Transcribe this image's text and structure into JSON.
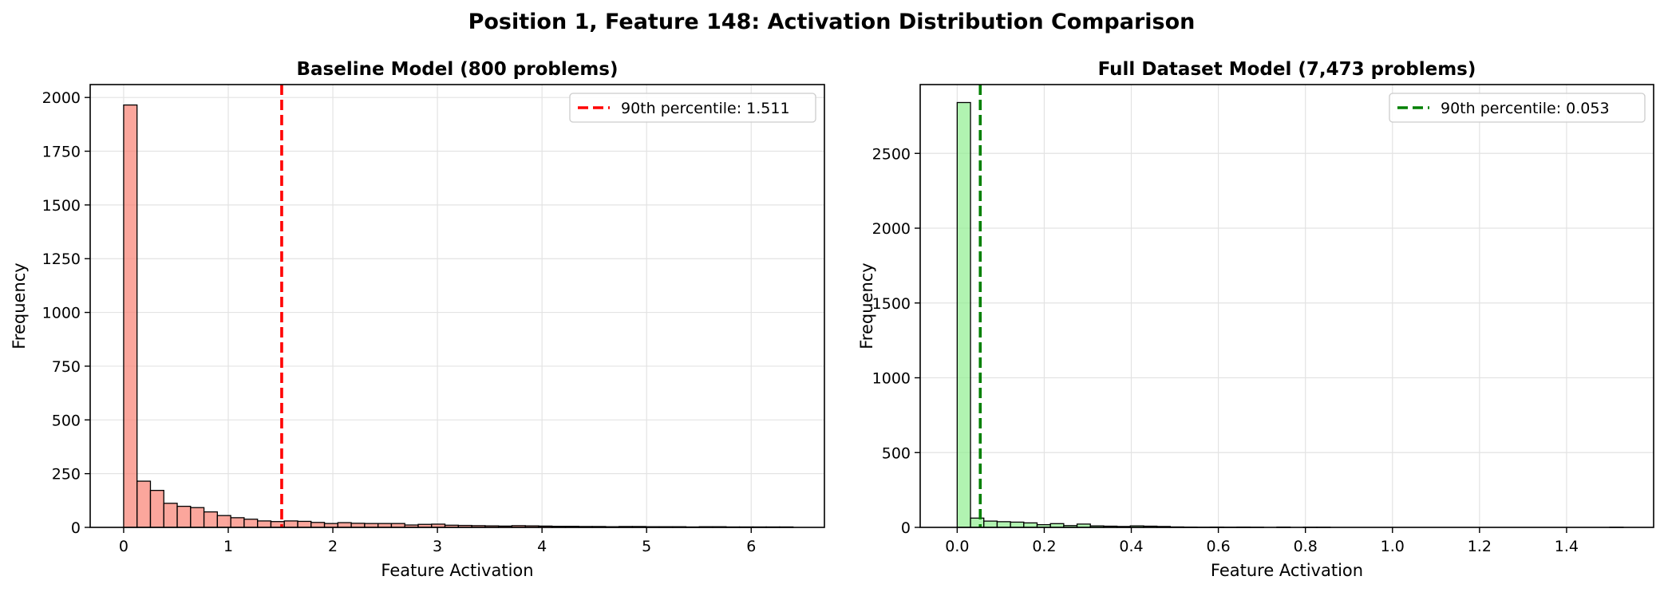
{
  "figure_title": "Position 1, Feature 148: Activation Distribution Comparison",
  "chart_data": [
    {
      "type": "bar",
      "subtype": "histogram",
      "title": "Baseline Model (800 problems)",
      "xlabel": "Feature Activation",
      "ylabel": "Frequency",
      "xlim": [
        -0.32,
        6.7
      ],
      "ylim": [
        0,
        2060
      ],
      "xticks": [
        0,
        1,
        2,
        3,
        4,
        5,
        6
      ],
      "yticks": [
        0,
        250,
        500,
        750,
        1000,
        1250,
        1500,
        1750,
        2000
      ],
      "grid": true,
      "legend_position": "top-right",
      "bar_color": "#FA8072",
      "edge_color": "#000000",
      "bin_start": 0.0,
      "bin_width": 0.128,
      "values": [
        1965,
        215,
        172,
        112,
        98,
        92,
        72,
        55,
        45,
        38,
        30,
        27,
        30,
        28,
        23,
        18,
        22,
        19,
        18,
        18,
        18,
        11,
        14,
        15,
        10,
        9,
        8,
        7,
        6,
        8,
        7,
        6,
        5,
        5,
        4,
        4,
        3,
        4,
        4,
        3,
        3,
        3,
        2,
        3,
        3,
        2,
        2,
        2,
        2,
        2
      ],
      "percentile_line": {
        "value": 1.511,
        "label": "90th percentile: 1.511",
        "color": "#FF0000"
      }
    },
    {
      "type": "bar",
      "subtype": "histogram",
      "title": "Full Dataset Model (7,473 problems)",
      "xlabel": "Feature Activation",
      "ylabel": "Frequency",
      "xlim": [
        -0.085,
        1.6
      ],
      "ylim": [
        0,
        2960
      ],
      "xticks": [
        0.0,
        0.2,
        0.4,
        0.6,
        0.8,
        1.0,
        1.2,
        1.4
      ],
      "yticks": [
        0,
        500,
        1000,
        1500,
        2000,
        2500
      ],
      "grid": true,
      "legend_position": "top-right",
      "bar_color": "#90EE90",
      "edge_color": "#000000",
      "bin_start": 0.0,
      "bin_width": 0.0306,
      "values": [
        2840,
        62,
        42,
        38,
        35,
        30,
        18,
        25,
        12,
        22,
        10,
        8,
        6,
        10,
        8,
        6,
        3,
        2,
        1,
        2,
        1,
        2,
        1,
        0,
        2,
        0,
        1,
        1,
        0,
        0,
        0,
        0,
        0,
        0,
        0,
        0,
        0,
        0,
        0,
        0,
        0,
        0,
        0,
        0,
        0,
        0,
        0,
        0,
        0,
        1
      ],
      "percentile_line": {
        "value": 0.053,
        "label": "90th percentile: 0.053",
        "color": "#008000"
      }
    }
  ]
}
